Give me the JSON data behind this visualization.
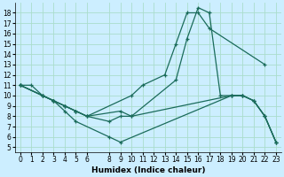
{
  "xlabel": "Humidex (Indice chaleur)",
  "bg_color": "#cceeff",
  "grid_color": "#aaddcc",
  "line_color": "#1a6b5a",
  "xlim": [
    -0.5,
    23.5
  ],
  "ylim": [
    4.5,
    19
  ],
  "xticks": [
    0,
    1,
    2,
    3,
    4,
    5,
    6,
    8,
    9,
    10,
    11,
    12,
    13,
    14,
    15,
    16,
    17,
    18,
    19,
    20,
    21,
    22,
    23
  ],
  "yticks": [
    5,
    6,
    7,
    8,
    9,
    10,
    11,
    12,
    13,
    14,
    15,
    16,
    17,
    18
  ],
  "lines": [
    {
      "x": [
        0,
        2,
        3,
        4,
        5,
        6,
        10,
        11,
        13,
        14,
        15,
        16,
        17,
        22
      ],
      "y": [
        11,
        10,
        9.5,
        9,
        8.5,
        8,
        10,
        11,
        12,
        15,
        18,
        18,
        16.5,
        13
      ]
    },
    {
      "x": [
        0,
        1,
        2,
        3,
        4,
        5,
        6,
        9,
        10,
        14,
        15,
        16,
        17,
        18,
        19,
        20,
        21,
        22,
        23
      ],
      "y": [
        11,
        11,
        10,
        9.5,
        9,
        8.5,
        8,
        8.5,
        8,
        11.5,
        15.5,
        18.5,
        18,
        10,
        10,
        10,
        9.5,
        8,
        5.5
      ]
    },
    {
      "x": [
        0,
        2,
        3,
        4,
        5,
        6,
        8,
        9,
        10,
        19,
        20,
        21,
        22,
        23
      ],
      "y": [
        11,
        10,
        9.5,
        9,
        8.5,
        8,
        7.5,
        8,
        8,
        10,
        10,
        9.5,
        8,
        5.5
      ]
    },
    {
      "x": [
        0,
        2,
        3,
        4,
        5,
        8,
        9,
        19,
        20,
        21,
        22,
        23
      ],
      "y": [
        11,
        10,
        9.5,
        8.5,
        7.5,
        6,
        5.5,
        10,
        10,
        9.5,
        8,
        5.5
      ]
    }
  ]
}
